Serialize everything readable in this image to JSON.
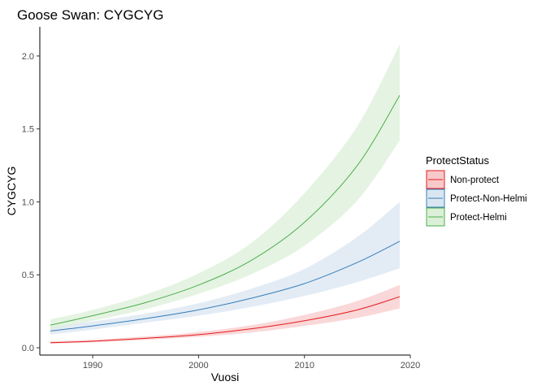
{
  "chart_data": {
    "type": "line",
    "title": "Goose Swan: CYGCYG",
    "xlabel": "Vuosi",
    "ylabel": "CYGCYG",
    "xlim": [
      1985,
      2020
    ],
    "ylim": [
      -0.05,
      2.2
    ],
    "x_ticks": [
      1990,
      2000,
      2010,
      2020
    ],
    "y_ticks": [
      0.0,
      0.5,
      1.0,
      1.5,
      2.0
    ],
    "x_tick_labels": [
      "1990",
      "2000",
      "2010",
      "2020"
    ],
    "y_tick_labels": [
      "0.0",
      "0.5",
      "1.0",
      "1.5",
      "2.0"
    ],
    "grid": false,
    "legend": {
      "title": "ProtectStatus",
      "position": "right"
    },
    "x": [
      1986,
      1990,
      1995,
      2000,
      2005,
      2010,
      2015,
      2019
    ],
    "series": [
      {
        "name": "Non-protect",
        "color": "#e41a1c",
        "fill": "#f8c9cb",
        "values": [
          0.035,
          0.045,
          0.065,
          0.09,
          0.13,
          0.185,
          0.26,
          0.35
        ],
        "lower": [
          0.028,
          0.037,
          0.054,
          0.075,
          0.105,
          0.15,
          0.205,
          0.27
        ],
        "upper": [
          0.045,
          0.055,
          0.078,
          0.108,
          0.155,
          0.225,
          0.32,
          0.43
        ]
      },
      {
        "name": "Protect-Non-Helmi",
        "color": "#377eb8",
        "fill": "#d9e6f2",
        "values": [
          0.115,
          0.15,
          0.2,
          0.26,
          0.34,
          0.44,
          0.585,
          0.73
        ],
        "lower": [
          0.09,
          0.125,
          0.172,
          0.22,
          0.28,
          0.355,
          0.45,
          0.545
        ],
        "upper": [
          0.145,
          0.18,
          0.235,
          0.305,
          0.405,
          0.54,
          0.76,
          1.0
        ]
      },
      {
        "name": "Protect-Helmi",
        "color": "#4daf4a",
        "fill": "#dcefd9",
        "values": [
          0.155,
          0.22,
          0.31,
          0.43,
          0.6,
          0.86,
          1.25,
          1.73
        ],
        "lower": [
          0.125,
          0.185,
          0.265,
          0.37,
          0.505,
          0.7,
          1.01,
          1.42
        ],
        "upper": [
          0.195,
          0.26,
          0.365,
          0.51,
          0.72,
          1.06,
          1.52,
          2.08
        ]
      }
    ]
  }
}
